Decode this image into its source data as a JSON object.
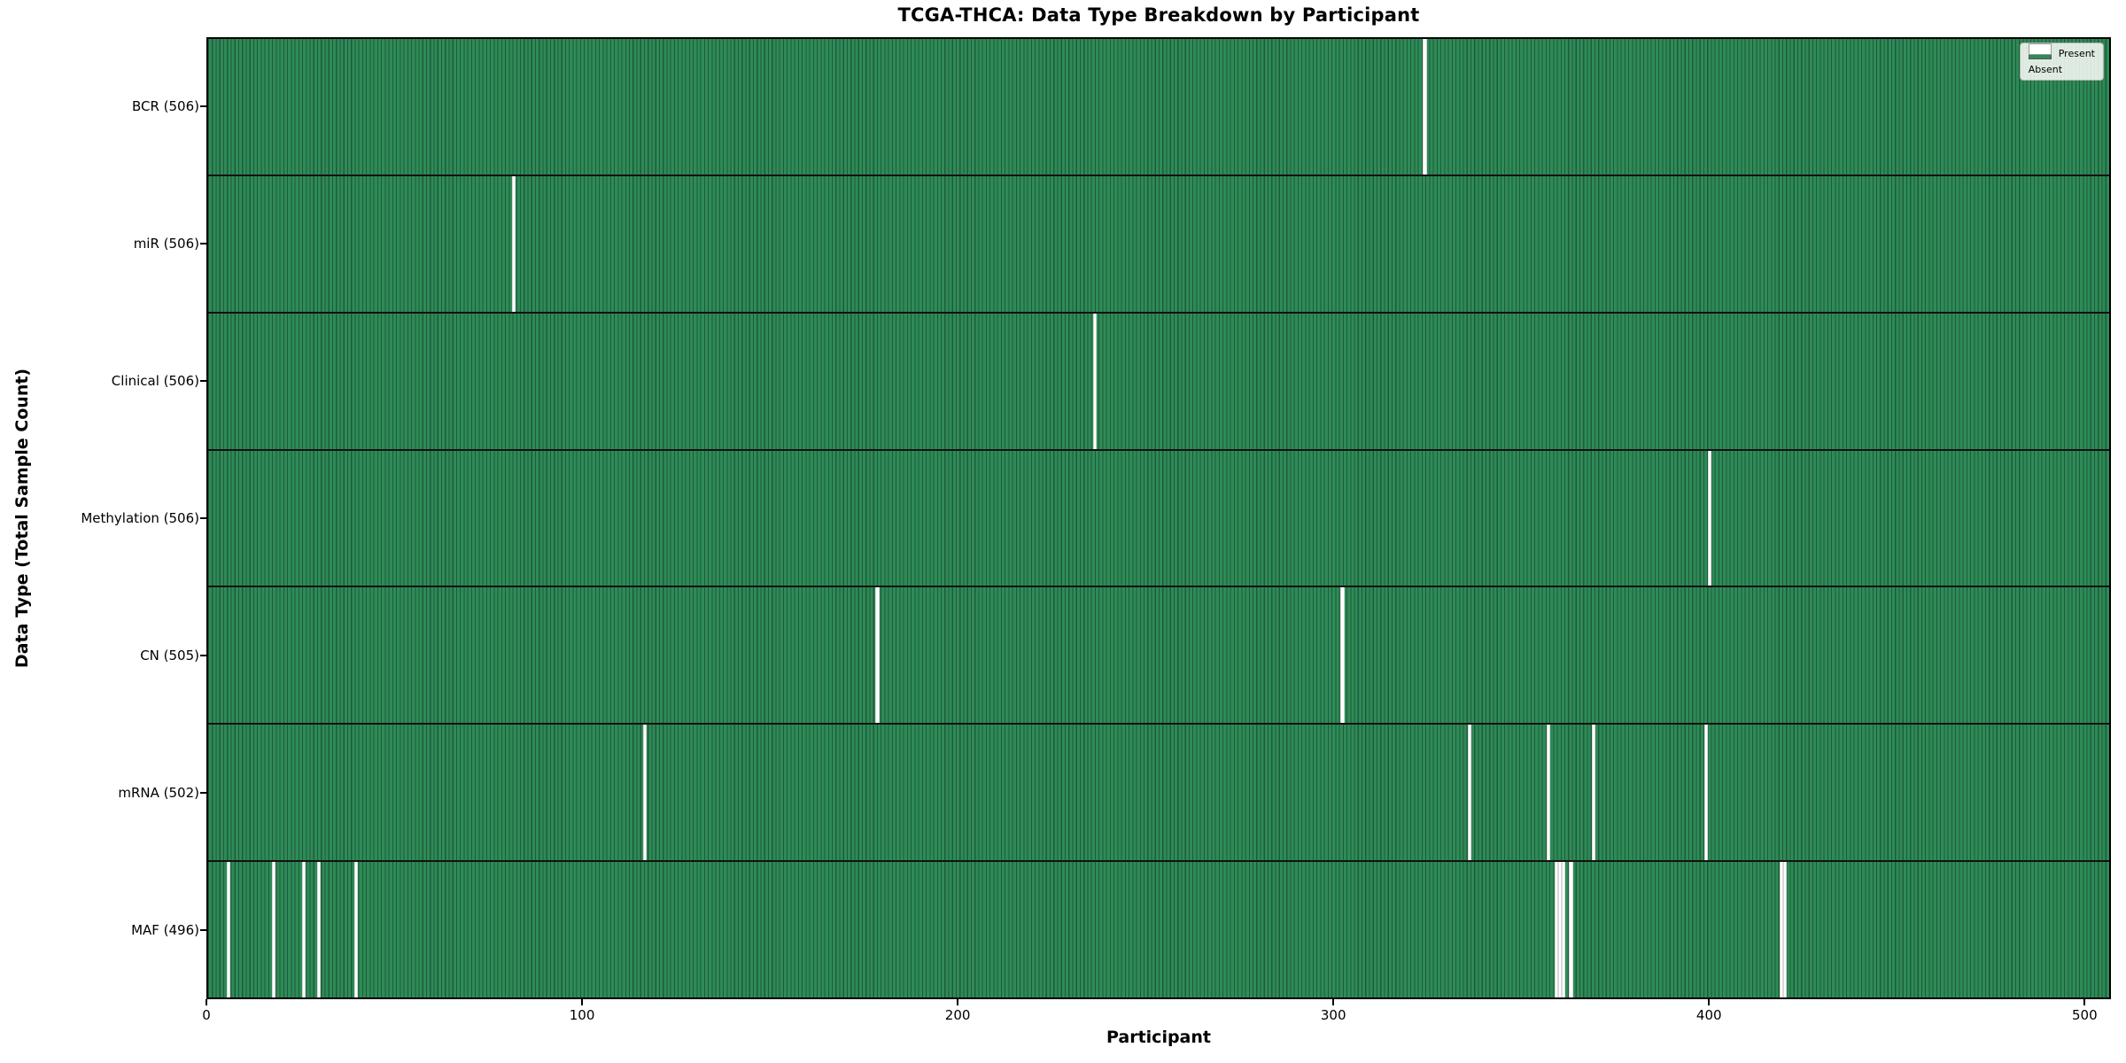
{
  "figure": {
    "title": "TCGA-THCA: Data Type Breakdown by Participant",
    "xlabel": "Participant",
    "ylabel": "Data Type (Total Sample Count)"
  },
  "legend": {
    "present_label": "Present",
    "absent_label": "Absent",
    "present_color": "#2e8b57",
    "absent_color": "#ffffff"
  },
  "chart_data": {
    "type": "heatmap",
    "title": "TCGA-THCA: Data Type Breakdown by Participant",
    "xlabel": "Participant",
    "ylabel": "Data Type (Total Sample Count)",
    "x_ticks": [
      0,
      100,
      200,
      300,
      400,
      500
    ],
    "x_range": [
      0,
      507
    ],
    "n_participants": 507,
    "grid": false,
    "legend_position": "upper right",
    "colors": {
      "present": "#2e8b57",
      "absent": "#ffffff",
      "bar_edge": "#1e5b3a"
    },
    "rows": [
      {
        "label": "BCR (506)",
        "data_type": "BCR",
        "present_count": 506,
        "absent_participants": [
          324
        ]
      },
      {
        "label": "miR (506)",
        "data_type": "miR",
        "present_count": 506,
        "absent_participants": [
          81
        ]
      },
      {
        "label": "Clinical (506)",
        "data_type": "Clinical",
        "present_count": 506,
        "absent_participants": [
          236
        ]
      },
      {
        "label": "Methylation (506)",
        "data_type": "Methylation",
        "present_count": 506,
        "absent_participants": [
          400
        ]
      },
      {
        "label": "CN (505)",
        "data_type": "CN",
        "present_count": 505,
        "absent_participants": [
          178,
          302
        ]
      },
      {
        "label": "mRNA (502)",
        "data_type": "mRNA",
        "present_count": 502,
        "absent_participants": [
          116,
          336,
          357,
          369,
          399
        ]
      },
      {
        "label": "MAF (496)",
        "data_type": "MAF",
        "present_count": 496,
        "absent_participants": [
          5,
          17,
          25,
          29,
          39,
          359,
          360,
          361,
          363,
          419,
          420
        ]
      }
    ]
  }
}
